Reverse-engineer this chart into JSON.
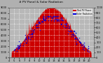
{
  "title": "# PV Panel & Solar Radiation",
  "bg_color": "#b0b0b0",
  "plot_bg_color": "#b8b8b8",
  "area_color": "#cc0000",
  "scatter_color": "#0000dd",
  "peak_hour": 12.5,
  "start_hour": 4.5,
  "end_hour": 20.5,
  "pv_scale": 9000,
  "rad_scale": 1000,
  "y_left_ticks": [
    0,
    1000,
    2000,
    3000,
    4000,
    5000,
    6000,
    7000,
    8000,
    9000
  ],
  "y_right_ticks": [
    0,
    100,
    200,
    300,
    400,
    500,
    600,
    700,
    800,
    900,
    1000
  ],
  "x_ticks": [
    4,
    5,
    6,
    7,
    8,
    9,
    10,
    11,
    12,
    13,
    14,
    15,
    16,
    17,
    18,
    19,
    20
  ],
  "xlim": [
    4,
    21
  ],
  "legend_pv_label": "Total PV Power",
  "legend_rad_label": "Solar Radiation",
  "legend_pv_color": "#cc0000",
  "legend_rad_color": "#0000dd"
}
